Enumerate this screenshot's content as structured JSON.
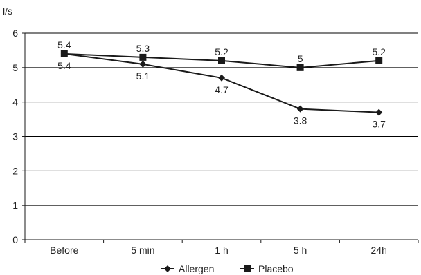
{
  "chart_data": {
    "type": "line",
    "ylabel": "l/s",
    "ylim": [
      0,
      6
    ],
    "yticks": [
      0,
      1,
      2,
      3,
      4,
      5,
      6
    ],
    "grid": true,
    "categories": [
      "Before",
      "5 min",
      "1 h",
      "5 h",
      "24h"
    ],
    "legend_position": "bottom",
    "series": [
      {
        "name": "Allergen",
        "marker": "diamond",
        "values": [
          5.4,
          5.1,
          4.7,
          3.8,
          3.7
        ],
        "labels": [
          "5.4",
          "5.1",
          "4.7",
          "3.8",
          "3.7"
        ],
        "label_pos": "below"
      },
      {
        "name": "Placebo",
        "marker": "square",
        "values": [
          5.4,
          5.3,
          5.2,
          5,
          5.2
        ],
        "labels": [
          "5.4",
          "5.3",
          "5.2",
          "5",
          "5.2"
        ],
        "label_pos": "above"
      }
    ],
    "colors": {
      "line": "#1a1a1a",
      "grid": "#000000",
      "text": "#222222"
    }
  }
}
